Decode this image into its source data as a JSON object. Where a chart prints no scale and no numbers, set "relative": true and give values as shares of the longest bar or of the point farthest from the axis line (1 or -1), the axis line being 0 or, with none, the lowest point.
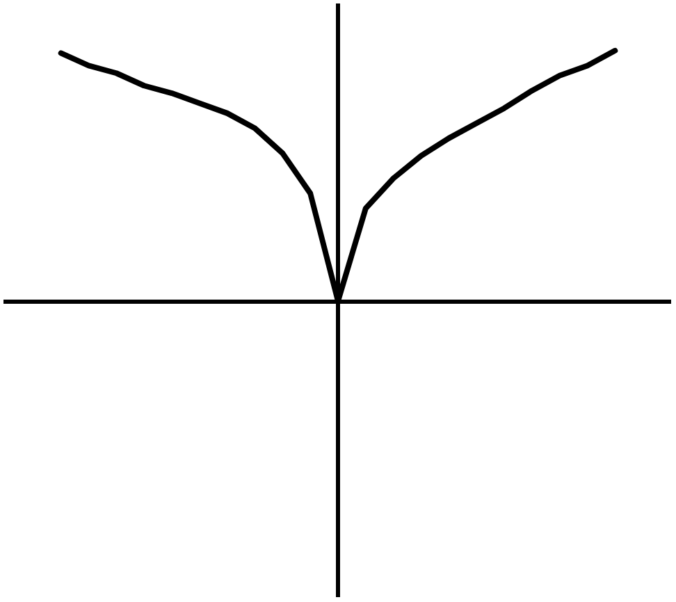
{
  "chart_data": {
    "type": "line",
    "relative": true,
    "categories": [
      null,
      null,
      null,
      null,
      null,
      null,
      null,
      null,
      null,
      null,
      null,
      null,
      null,
      null,
      null,
      null,
      null,
      null,
      null,
      null,
      null,
      null,
      null,
      null,
      null
    ],
    "values": [
      null,
      null,
      0.99,
      0.94,
      0.91,
      0.86,
      0.83,
      0.79,
      0.75,
      0.69,
      0.59,
      0.43,
      0,
      0.37,
      0.49,
      0.58,
      0.65,
      0.71,
      0.77,
      0.84,
      0.9,
      0.94,
      1,
      null,
      null
    ],
    "color": "#000000",
    "marker": "none",
    "line_style": "solid",
    "grid": false,
    "legend": false
  }
}
